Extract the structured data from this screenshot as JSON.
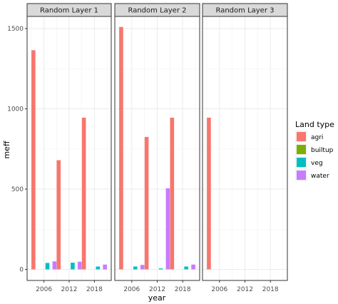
{
  "chart_data": {
    "type": "bar",
    "xlabel": "year",
    "ylabel": "meff",
    "ylim": [
      0,
      1600
    ],
    "y_ticks": [
      0,
      500,
      1000,
      1500
    ],
    "x_ticks": [
      2006,
      2012,
      2018
    ],
    "legend": {
      "title": "Land type",
      "placement": "right",
      "entries": [
        {
          "name": "agri",
          "color": "#F8766D"
        },
        {
          "name": "builtup",
          "color": "#7CAE00"
        },
        {
          "name": "veg",
          "color": "#00BFC4"
        },
        {
          "name": "water",
          "color": "#C77CFF"
        }
      ]
    },
    "panels": [
      {
        "title": "Random Layer 1",
        "bars": [
          {
            "year": 2006,
            "type": "agri",
            "value": 1365
          },
          {
            "year": 2006,
            "type": "veg",
            "value": 40
          },
          {
            "year": 2006,
            "type": "water",
            "value": 50
          },
          {
            "year": 2012,
            "type": "agri",
            "value": 680
          },
          {
            "year": 2012,
            "type": "veg",
            "value": 42
          },
          {
            "year": 2012,
            "type": "water",
            "value": 48
          },
          {
            "year": 2018,
            "type": "agri",
            "value": 945
          },
          {
            "year": 2018,
            "type": "veg",
            "value": 18
          },
          {
            "year": 2018,
            "type": "water",
            "value": 30
          }
        ]
      },
      {
        "title": "Random Layer 2",
        "bars": [
          {
            "year": 2006,
            "type": "agri",
            "value": 1510
          },
          {
            "year": 2006,
            "type": "veg",
            "value": 18
          },
          {
            "year": 2006,
            "type": "water",
            "value": 28
          },
          {
            "year": 2012,
            "type": "agri",
            "value": 825
          },
          {
            "year": 2012,
            "type": "veg",
            "value": 6
          },
          {
            "year": 2012,
            "type": "water",
            "value": 505
          },
          {
            "year": 2018,
            "type": "agri",
            "value": 945
          },
          {
            "year": 2018,
            "type": "veg",
            "value": 18
          },
          {
            "year": 2018,
            "type": "water",
            "value": 30
          }
        ]
      },
      {
        "title": "Random Layer 3",
        "bars": [
          {
            "year": 2006,
            "type": "agri",
            "value": 945
          }
        ]
      }
    ]
  }
}
